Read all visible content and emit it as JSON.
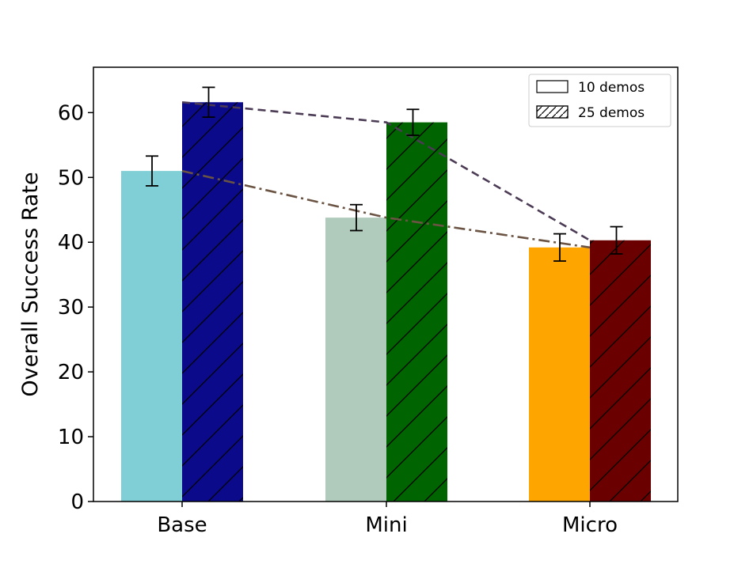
{
  "chart_data": {
    "type": "bar",
    "categories": [
      "Base",
      "Mini",
      "Micro"
    ],
    "ylabel": "Overall Success Rate",
    "xlabel": "",
    "ylim": [
      0,
      67
    ],
    "yticks": [
      0,
      10,
      20,
      30,
      40,
      50,
      60
    ],
    "grid": false,
    "legend_position": "top-right",
    "series": [
      {
        "name": "10 demos",
        "hatch": "none",
        "values": [
          51.0,
          43.8,
          39.2
        ],
        "errors": [
          2.3,
          2.0,
          2.1
        ],
        "colors": [
          "#80cfd7",
          "#b0cbbb",
          "#ffa500"
        ],
        "trend_color": "#6b5443",
        "trend_style": "dash-dot"
      },
      {
        "name": "25 demos",
        "hatch": "diagonal",
        "values": [
          61.6,
          58.5,
          40.3
        ],
        "errors": [
          2.3,
          2.0,
          2.1
        ],
        "colors": [
          "#0a0a8b",
          "#006400",
          "#6b0000"
        ],
        "trend_color": "#4b3b55",
        "trend_style": "dashed"
      }
    ]
  }
}
